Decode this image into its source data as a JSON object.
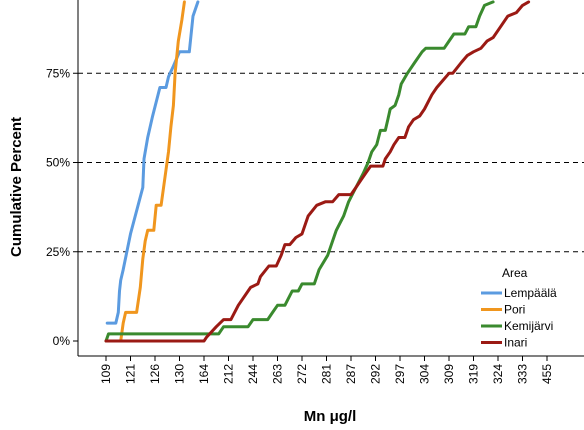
{
  "chart_data": {
    "type": "line",
    "xlabel": "Mn μg/l",
    "ylabel": "Cumulative Percent",
    "x_tick_labels": [
      "109",
      "121",
      "126",
      "130",
      "164",
      "212",
      "244",
      "263",
      "272",
      "281",
      "287",
      "292",
      "297",
      "304",
      "309",
      "319",
      "324",
      "333",
      "455"
    ],
    "y_ticks": [
      0,
      25,
      50,
      75
    ],
    "y_tick_labels": [
      "0%",
      "25%",
      "50%",
      "75%"
    ],
    "ylim": [
      -3,
      95
    ],
    "grid": "horizontal dashed lines at 25%, 50%, 75%",
    "x_scale": "categorical positions at the printed tick values",
    "legend": {
      "title": "Area",
      "placement": "bottom-right"
    },
    "series": [
      {
        "name": "Lempäälä",
        "color": "#5b9be0",
        "points": [
          [
            0.05,
            5
          ],
          [
            0.4,
            5
          ],
          [
            0.5,
            8
          ],
          [
            0.55,
            14
          ],
          [
            0.6,
            17
          ],
          [
            0.7,
            20
          ],
          [
            1.0,
            30
          ],
          [
            1.5,
            43
          ],
          [
            1.55,
            51
          ],
          [
            1.7,
            57
          ],
          [
            1.9,
            63
          ],
          [
            2.2,
            71
          ],
          [
            2.45,
            71
          ],
          [
            2.55,
            74
          ],
          [
            2.75,
            77
          ],
          [
            3.0,
            81
          ],
          [
            3.4,
            81
          ],
          [
            3.55,
            91
          ],
          [
            3.75,
            95
          ]
        ]
      },
      {
        "name": "Pori",
        "color": "#f0961e",
        "points": [
          [
            0.0,
            0
          ],
          [
            0.6,
            0
          ],
          [
            0.7,
            5
          ],
          [
            0.8,
            8
          ],
          [
            1.25,
            8
          ],
          [
            1.4,
            15
          ],
          [
            1.5,
            23
          ],
          [
            1.6,
            28
          ],
          [
            1.7,
            31
          ],
          [
            1.95,
            31
          ],
          [
            2.05,
            38
          ],
          [
            2.25,
            38
          ],
          [
            2.55,
            53
          ],
          [
            2.65,
            60
          ],
          [
            2.75,
            66
          ],
          [
            2.82,
            75
          ],
          [
            2.95,
            84
          ],
          [
            3.1,
            90
          ],
          [
            3.2,
            95
          ]
        ]
      },
      {
        "name": "Kemijärvi",
        "color": "#3a8a2e",
        "points": [
          [
            0.0,
            0
          ],
          [
            0.1,
            2
          ],
          [
            4.6,
            2
          ],
          [
            4.8,
            4
          ],
          [
            5.8,
            4
          ],
          [
            6.0,
            6
          ],
          [
            6.6,
            6
          ],
          [
            6.8,
            8
          ],
          [
            7.0,
            10
          ],
          [
            7.3,
            10
          ],
          [
            7.6,
            14
          ],
          [
            7.85,
            14
          ],
          [
            8.0,
            16
          ],
          [
            8.5,
            16
          ],
          [
            8.7,
            20
          ],
          [
            9.05,
            24
          ],
          [
            9.25,
            28
          ],
          [
            9.4,
            31
          ],
          [
            9.7,
            35
          ],
          [
            9.9,
            39
          ],
          [
            10.2,
            43
          ],
          [
            10.5,
            47
          ],
          [
            10.7,
            50
          ],
          [
            10.85,
            53
          ],
          [
            11.05,
            55
          ],
          [
            11.2,
            59
          ],
          [
            11.4,
            59
          ],
          [
            11.5,
            62
          ],
          [
            11.6,
            65
          ],
          [
            11.8,
            66
          ],
          [
            11.95,
            69
          ],
          [
            12.05,
            72
          ],
          [
            12.3,
            75
          ],
          [
            12.6,
            78
          ],
          [
            12.9,
            81
          ],
          [
            13.05,
            82
          ],
          [
            13.8,
            82
          ],
          [
            14.0,
            84
          ],
          [
            14.2,
            86
          ],
          [
            14.65,
            86
          ],
          [
            14.8,
            88
          ],
          [
            15.1,
            88
          ],
          [
            15.25,
            91
          ],
          [
            15.45,
            94
          ],
          [
            15.8,
            95
          ]
        ]
      },
      {
        "name": "Inari",
        "color": "#9b1a14",
        "points": [
          [
            0.0,
            0
          ],
          [
            4.0,
            0
          ],
          [
            4.1,
            1
          ],
          [
            4.5,
            4
          ],
          [
            4.8,
            6
          ],
          [
            5.1,
            6
          ],
          [
            5.4,
            10
          ],
          [
            5.9,
            15
          ],
          [
            6.2,
            16
          ],
          [
            6.3,
            18
          ],
          [
            6.65,
            21
          ],
          [
            6.95,
            21
          ],
          [
            7.15,
            24
          ],
          [
            7.3,
            27
          ],
          [
            7.5,
            27
          ],
          [
            7.75,
            29
          ],
          [
            8.0,
            30
          ],
          [
            8.25,
            35
          ],
          [
            8.6,
            38
          ],
          [
            8.95,
            39
          ],
          [
            9.25,
            39
          ],
          [
            9.5,
            41
          ],
          [
            10.0,
            41
          ],
          [
            10.2,
            43
          ],
          [
            10.4,
            45
          ],
          [
            10.6,
            47
          ],
          [
            10.8,
            49
          ],
          [
            11.3,
            49
          ],
          [
            11.4,
            51
          ],
          [
            11.6,
            53
          ],
          [
            11.75,
            55
          ],
          [
            11.95,
            57
          ],
          [
            12.2,
            57
          ],
          [
            12.35,
            60
          ],
          [
            12.55,
            62
          ],
          [
            12.8,
            63
          ],
          [
            13.0,
            65
          ],
          [
            13.3,
            69
          ],
          [
            13.5,
            71
          ],
          [
            13.75,
            73
          ],
          [
            14.0,
            75
          ],
          [
            14.15,
            75
          ],
          [
            14.5,
            78
          ],
          [
            14.75,
            80
          ],
          [
            15.0,
            81
          ],
          [
            15.3,
            82
          ],
          [
            15.55,
            84
          ],
          [
            15.8,
            85
          ],
          [
            16.1,
            88
          ],
          [
            16.4,
            91
          ],
          [
            16.75,
            92
          ],
          [
            17.0,
            94
          ],
          [
            17.25,
            95
          ]
        ]
      }
    ]
  }
}
